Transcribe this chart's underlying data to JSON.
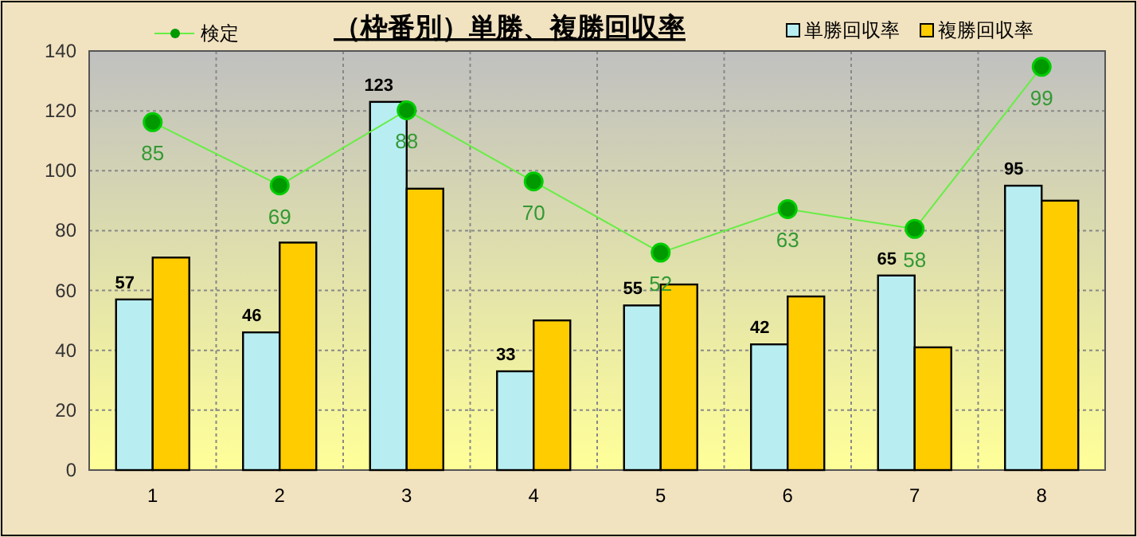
{
  "chart_data": {
    "type": "bar",
    "title": "（枠番別）単勝、複勝回収率",
    "categories": [
      "1",
      "2",
      "3",
      "4",
      "5",
      "6",
      "7",
      "8"
    ],
    "series": [
      {
        "name": "単勝回収率",
        "color": "#b8eef2",
        "values": [
          57,
          46,
          123,
          33,
          55,
          42,
          65,
          95
        ],
        "value_labels": [
          "57",
          "46",
          "123",
          "33",
          "55",
          "42",
          "65",
          "95"
        ]
      },
      {
        "name": "複勝回収率",
        "color": "#ffcc00",
        "values": [
          71,
          76,
          94,
          50,
          62,
          58,
          41,
          90
        ]
      },
      {
        "name": "検定",
        "type": "line",
        "axis": "y2",
        "color": "#66ee44",
        "marker": "circle",
        "values": [
          85,
          69,
          88,
          70,
          52,
          63,
          58,
          99
        ],
        "value_labels": [
          "85",
          "69",
          "88",
          "70",
          "52",
          "63",
          "58",
          "99"
        ]
      }
    ],
    "ylim": [
      0,
      140
    ],
    "yticks": [
      0,
      20,
      40,
      60,
      80,
      100,
      120,
      140
    ],
    "y2lim": [
      -3,
      103
    ],
    "grid": true,
    "legend": "top"
  }
}
